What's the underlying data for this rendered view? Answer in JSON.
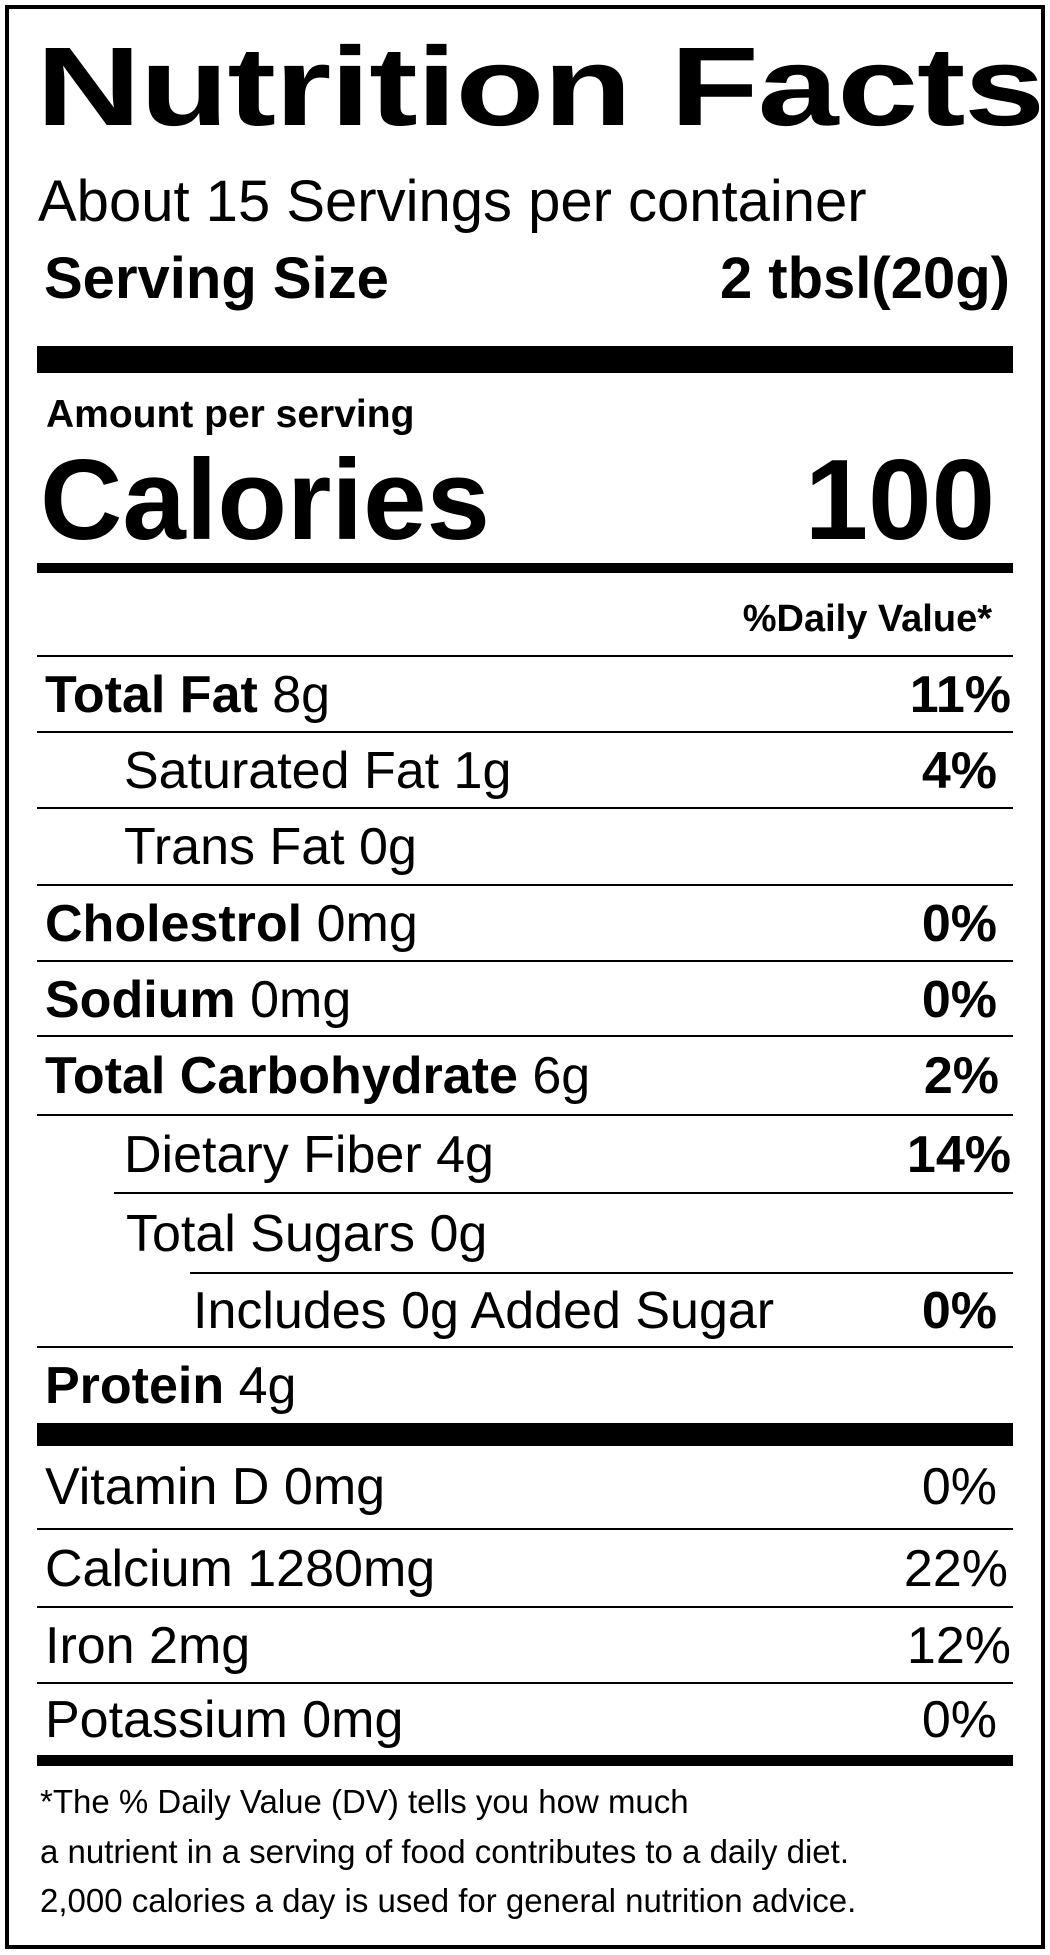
{
  "title": "Nutrition Facts",
  "servings_per_container": "About 15 Servings per container",
  "serving_size": {
    "label": "Serving Size",
    "value": "2 tbsl(20g)"
  },
  "amount_per_serving": "Amount per serving",
  "calories": {
    "label": "Calories",
    "value": "100"
  },
  "daily_value_header": "%Daily Value*",
  "nutrients": [
    {
      "name": "Total Fat",
      "amount": "8g",
      "dv": "11%"
    },
    {
      "name": "Saturated Fat",
      "amount": "1g",
      "dv": "4%"
    },
    {
      "name": "Trans Fat",
      "amount": "0g",
      "dv": ""
    },
    {
      "name": "Cholestrol",
      "amount": "0mg",
      "dv": "0%"
    },
    {
      "name": "Sodium",
      "amount": "0mg",
      "dv": "0%"
    },
    {
      "name": "Total Carbohydrate",
      "amount": "6g",
      "dv": "2%"
    },
    {
      "name": "Dietary Fiber",
      "amount": "4g",
      "dv": "14%"
    },
    {
      "name": "Total Sugars",
      "amount": "0g",
      "dv": ""
    },
    {
      "name": "Includes 0g Added Sugar",
      "amount": "",
      "dv": "0%"
    },
    {
      "name": "Protein",
      "amount": "4g",
      "dv": ""
    }
  ],
  "vitamins": [
    {
      "label": "Vitamin D 0mg",
      "dv": "0%"
    },
    {
      "label": "Calcium 1280mg",
      "dv": "22%"
    },
    {
      "label": "Iron 2mg",
      "dv": "12%"
    },
    {
      "label": "Potassium 0mg",
      "dv": "0%"
    }
  ],
  "footnote": [
    "*The % Daily Value (DV) tells you how much",
    "a nutrient in a serving of food contributes to a daily diet.",
    "2,000 calories a day is used for general nutrition advice."
  ]
}
